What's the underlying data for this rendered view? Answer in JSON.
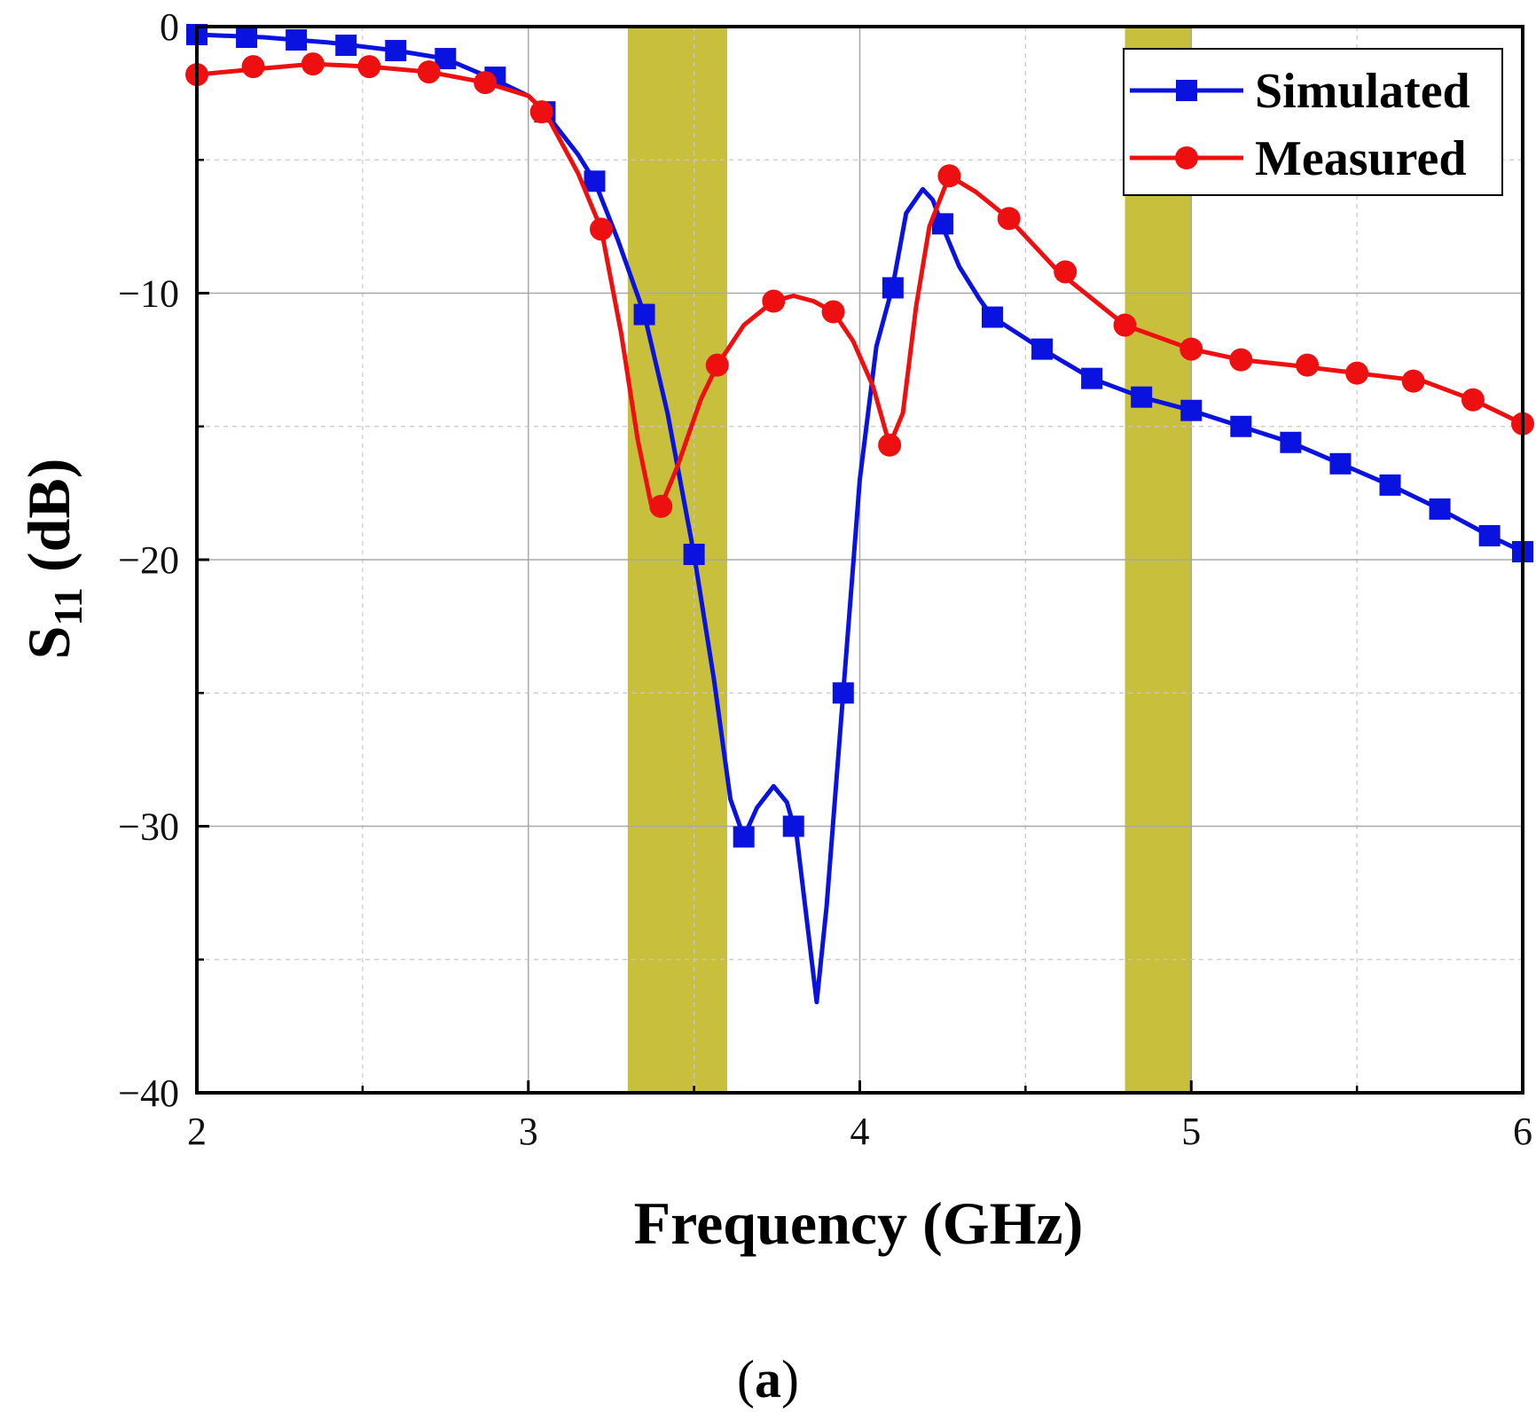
{
  "chart_data": {
    "type": "line",
    "title": "",
    "xlabel": "Frequency (GHz)",
    "ylabel_main": "S",
    "ylabel_sub": "11",
    "ylabel_unit": " (dB)",
    "xlim": [
      2,
      6
    ],
    "ylim": [
      -40,
      0
    ],
    "xticks": [
      2,
      3,
      4,
      5,
      6
    ],
    "yticks": [
      0,
      -10,
      -20,
      -30,
      -40
    ],
    "ytick_labels": [
      "0",
      "−10",
      "−20",
      "−30",
      "−40"
    ],
    "grid": true,
    "legend_position": "top-right",
    "shaded_bands": [
      {
        "x0": 3.3,
        "x1": 3.6,
        "color": "#c8c03c"
      },
      {
        "x0": 4.8,
        "x1": 5.0,
        "color": "#c8c03c"
      }
    ],
    "series": [
      {
        "name": "Simulated",
        "color": "#0a12e0",
        "marker": "square",
        "curve": [
          [
            2.0,
            -0.3
          ],
          [
            2.2,
            -0.4
          ],
          [
            2.4,
            -0.6
          ],
          [
            2.6,
            -0.9
          ],
          [
            2.75,
            -1.2
          ],
          [
            2.9,
            -2.0
          ],
          [
            3.0,
            -2.6
          ],
          [
            3.05,
            -3.2
          ],
          [
            3.15,
            -4.8
          ],
          [
            3.2,
            -5.8
          ],
          [
            3.27,
            -8.0
          ],
          [
            3.35,
            -10.8
          ],
          [
            3.42,
            -14.5
          ],
          [
            3.5,
            -19.8
          ],
          [
            3.56,
            -24.5
          ],
          [
            3.61,
            -29.0
          ],
          [
            3.65,
            -30.4
          ],
          [
            3.69,
            -29.3
          ],
          [
            3.74,
            -28.5
          ],
          [
            3.78,
            -29.1
          ],
          [
            3.81,
            -30.4
          ],
          [
            3.84,
            -33.5
          ],
          [
            3.87,
            -36.6
          ],
          [
            3.9,
            -33.0
          ],
          [
            3.95,
            -25.0
          ],
          [
            4.0,
            -17.0
          ],
          [
            4.05,
            -12.0
          ],
          [
            4.1,
            -9.7
          ],
          [
            4.14,
            -7.0
          ],
          [
            4.19,
            -6.1
          ],
          [
            4.22,
            -6.5
          ],
          [
            4.25,
            -7.5
          ],
          [
            4.3,
            -9.0
          ],
          [
            4.36,
            -10.2
          ],
          [
            4.4,
            -10.9
          ],
          [
            4.55,
            -12.1
          ],
          [
            4.7,
            -13.2
          ],
          [
            4.85,
            -13.9
          ],
          [
            5.0,
            -14.4
          ],
          [
            5.15,
            -15.0
          ],
          [
            5.3,
            -15.6
          ],
          [
            5.45,
            -16.4
          ],
          [
            5.6,
            -17.2
          ],
          [
            5.75,
            -18.1
          ],
          [
            5.9,
            -19.1
          ],
          [
            6.0,
            -19.7
          ]
        ],
        "markers_x": [
          2.0,
          2.15,
          2.3,
          2.45,
          2.6,
          2.75,
          2.9,
          3.05,
          3.2,
          3.35,
          3.5,
          3.65,
          3.8,
          3.95,
          4.1,
          4.25,
          4.4,
          4.55,
          4.7,
          4.85,
          5.0,
          5.15,
          5.3,
          5.45,
          5.6,
          5.75,
          5.9,
          6.0
        ],
        "markers_y": [
          -0.3,
          -0.4,
          -0.5,
          -0.7,
          -0.9,
          -1.2,
          -1.9,
          -3.2,
          -5.8,
          -10.8,
          -19.8,
          -30.4,
          -30.0,
          -25.0,
          -9.8,
          -7.4,
          -10.9,
          -12.1,
          -13.2,
          -13.9,
          -14.4,
          -15.0,
          -15.6,
          -16.4,
          -17.2,
          -18.1,
          -19.1,
          -19.7
        ]
      },
      {
        "name": "Measured",
        "color": "#ee1010",
        "marker": "circle",
        "curve": [
          [
            2.0,
            -1.8
          ],
          [
            2.17,
            -1.6
          ],
          [
            2.35,
            -1.4
          ],
          [
            2.52,
            -1.5
          ],
          [
            2.7,
            -1.7
          ],
          [
            2.87,
            -2.1
          ],
          [
            3.0,
            -2.6
          ],
          [
            3.05,
            -3.2
          ],
          [
            3.15,
            -5.5
          ],
          [
            3.22,
            -7.6
          ],
          [
            3.28,
            -11.5
          ],
          [
            3.33,
            -15.5
          ],
          [
            3.37,
            -17.9
          ],
          [
            3.4,
            -18.0
          ],
          [
            3.45,
            -16.5
          ],
          [
            3.52,
            -14.0
          ],
          [
            3.57,
            -12.7
          ],
          [
            3.65,
            -11.2
          ],
          [
            3.74,
            -10.3
          ],
          [
            3.8,
            -10.1
          ],
          [
            3.86,
            -10.3
          ],
          [
            3.92,
            -10.7
          ],
          [
            3.98,
            -11.8
          ],
          [
            4.04,
            -13.5
          ],
          [
            4.09,
            -15.7
          ],
          [
            4.13,
            -14.5
          ],
          [
            4.17,
            -10.5
          ],
          [
            4.21,
            -7.5
          ],
          [
            4.27,
            -5.6
          ],
          [
            4.35,
            -6.2
          ],
          [
            4.45,
            -7.2
          ],
          [
            4.6,
            -9.2
          ],
          [
            4.8,
            -11.2
          ],
          [
            5.0,
            -12.1
          ],
          [
            5.15,
            -12.5
          ],
          [
            5.3,
            -12.7
          ],
          [
            5.5,
            -13.0
          ],
          [
            5.7,
            -13.3
          ],
          [
            5.85,
            -14.0
          ],
          [
            6.0,
            -14.9
          ]
        ],
        "markers_x": [
          2.0,
          2.17,
          2.35,
          2.52,
          2.7,
          2.87,
          3.04,
          3.22,
          3.4,
          3.57,
          3.74,
          3.92,
          4.09,
          4.27,
          4.45,
          4.62,
          4.8,
          5.0,
          5.15,
          5.35,
          5.5,
          5.67,
          5.85,
          6.0
        ],
        "markers_y": [
          -1.8,
          -1.5,
          -1.4,
          -1.5,
          -1.7,
          -2.1,
          -3.2,
          -7.6,
          -18.0,
          -12.7,
          -10.3,
          -10.7,
          -15.7,
          -5.6,
          -7.2,
          -9.2,
          -11.2,
          -12.1,
          -12.5,
          -12.7,
          -13.0,
          -13.3,
          -14.0,
          -14.9
        ]
      }
    ]
  },
  "caption": {
    "open": "(",
    "letter": "a",
    "close": ")"
  }
}
